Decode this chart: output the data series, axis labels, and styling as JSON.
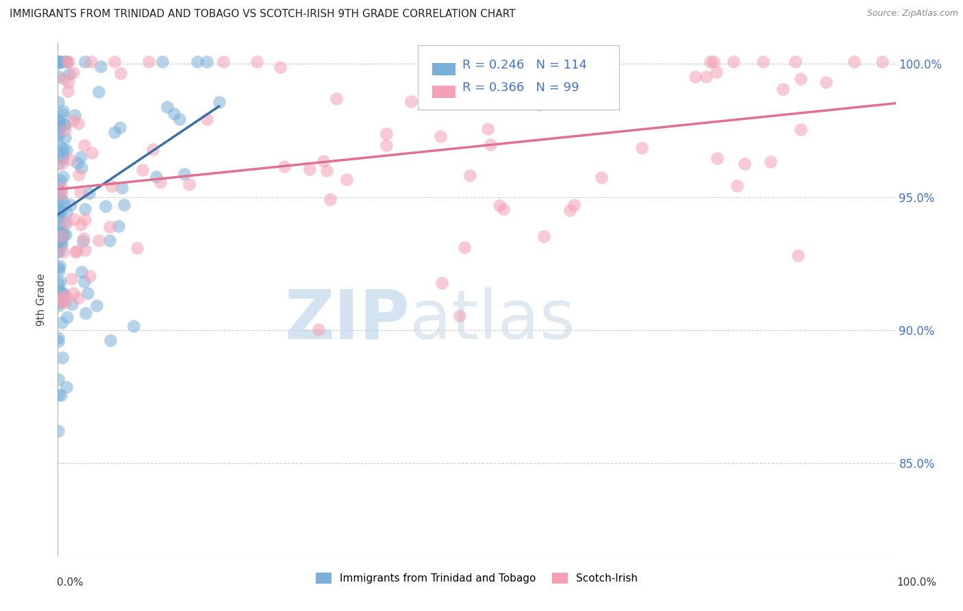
{
  "title": "IMMIGRANTS FROM TRINIDAD AND TOBAGO VS SCOTCH-IRISH 9TH GRADE CORRELATION CHART",
  "source": "Source: ZipAtlas.com",
  "ylabel": "9th Grade",
  "blue_R": 0.246,
  "blue_N": 114,
  "pink_R": 0.366,
  "pink_N": 99,
  "blue_color": "#7ab0d8",
  "pink_color": "#f4a0b5",
  "blue_line_color": "#3a6ea8",
  "pink_line_color": "#e07090",
  "ytick_color": "#4472c4",
  "watermark_zip_color": "#c5d8ee",
  "watermark_atlas_color": "#c8d8e8",
  "background_color": "#ffffff",
  "grid_color": "#cccccc",
  "title_color": "#222222",
  "source_color": "#888888",
  "ylabel_color": "#444444",
  "xlim": [
    0.0,
    1.0
  ],
  "ylim": [
    0.815,
    1.008
  ],
  "yticks": [
    0.85,
    0.9,
    0.95,
    1.0
  ],
  "ytick_labels": [
    "85.0%",
    "90.0%",
    "95.0%",
    "100.0%"
  ]
}
